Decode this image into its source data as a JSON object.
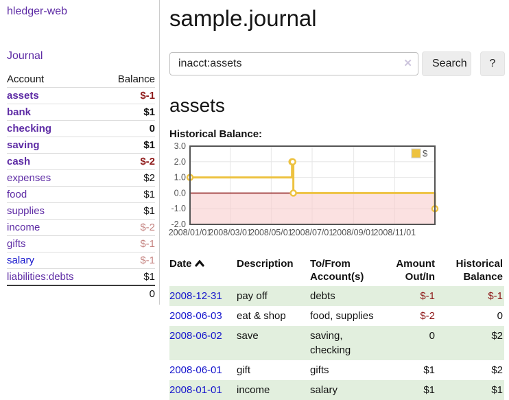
{
  "app": {
    "brand": "hledger-web"
  },
  "sidebar": {
    "journal_link": "Journal",
    "table": {
      "account_header": "Account",
      "balance_header": "Balance",
      "accounts": [
        {
          "name": "assets",
          "balance": "$-1"
        },
        {
          "name": "bank",
          "balance": "$1"
        },
        {
          "name": "checking",
          "balance": "0"
        },
        {
          "name": "saving",
          "balance": "$1"
        },
        {
          "name": "cash",
          "balance": "$-2"
        },
        {
          "name": "expenses",
          "balance": "$2"
        },
        {
          "name": "food",
          "balance": "$1"
        },
        {
          "name": "supplies",
          "balance": "$1"
        },
        {
          "name": "income",
          "balance": "$-2"
        },
        {
          "name": "gifts",
          "balance": "$-1"
        },
        {
          "name": "salary",
          "balance": "$-1"
        },
        {
          "name": "liabilities:debts",
          "balance": "$1"
        }
      ],
      "total": "0"
    }
  },
  "header": {
    "title": "sample.journal"
  },
  "search": {
    "query": "inacct:assets",
    "clear_icon": "✕",
    "search_button": "Search",
    "help_button": "?"
  },
  "account_page": {
    "heading": "assets"
  },
  "chart_data": {
    "type": "line",
    "title": "Historical Balance:",
    "series": [
      {
        "name": "$",
        "color": "#edc240",
        "steps": true,
        "points": [
          [
            "2008-01-01",
            1
          ],
          [
            "2008-06-01",
            2
          ],
          [
            "2008-06-02",
            2
          ],
          [
            "2008-06-03",
            0
          ],
          [
            "2008-12-31",
            -1
          ]
        ]
      }
    ],
    "x_range": [
      "2008-01-01",
      "2008-12-31"
    ],
    "x_ticks": [
      "2008/01/01",
      "2008/03/01",
      "2008/05/01",
      "2008/07/01",
      "2008/09/01",
      "2008/11/01"
    ],
    "y_ticks": [
      3.0,
      2.0,
      1.0,
      0.0,
      -1.0,
      -2.0
    ],
    "ylim": [
      -2,
      3
    ],
    "legend_position": "top-right",
    "grid": true,
    "colors": {
      "border": "#545454",
      "gridline": "#e6e6e6",
      "tick_label": "#545454",
      "negative_region": "#f8c8c8",
      "zero_line": "#8b1a1a"
    }
  },
  "register": {
    "columns": {
      "date": "Date",
      "description": "Description",
      "tofrom": "To/From Account(s)",
      "amount": "Amount Out/In",
      "balance": "Historical Balance"
    },
    "sort": {
      "column": "date",
      "direction": "ascending"
    },
    "rows": [
      {
        "date": "2008-12-31",
        "description": "pay off",
        "tofrom": "debts",
        "amount": "$-1",
        "balance": "$-1"
      },
      {
        "date": "2008-06-03",
        "description": "eat & shop",
        "tofrom": "food, supplies",
        "amount": "$-2",
        "balance": "0"
      },
      {
        "date": "2008-06-02",
        "description": "save",
        "tofrom": "saving, checking",
        "amount": "0",
        "balance": "$2"
      },
      {
        "date": "2008-06-01",
        "description": "gift",
        "tofrom": "gifts",
        "amount": "$1",
        "balance": "$2"
      },
      {
        "date": "2008-01-01",
        "description": "income",
        "tofrom": "salary",
        "amount": "$1",
        "balance": "$1"
      }
    ]
  },
  "colors": {
    "link_purple": "#5e2ca5",
    "link_blue": "#1414cc",
    "negative_strong": "#8e1919",
    "negative_faded": "#c4827f",
    "row_green": "#e2efde",
    "series_gold": "#edc240"
  }
}
